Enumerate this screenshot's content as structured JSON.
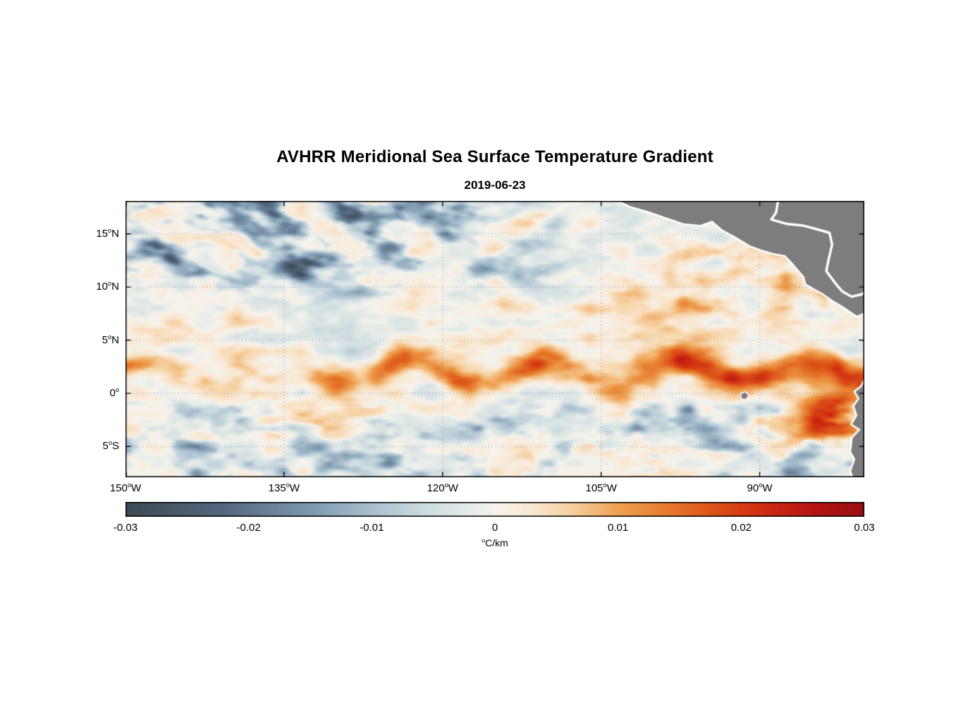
{
  "title": "AVHRR Meridional Sea Surface Temperature Gradient",
  "subtitle": "2019-06-23",
  "axes": {
    "deg_char": "o",
    "y_ticks": [
      {
        "lat": 15,
        "pre": "15",
        "post": "N"
      },
      {
        "lat": 10,
        "pre": "10",
        "post": "N"
      },
      {
        "lat": 5,
        "pre": "5",
        "post": "N"
      },
      {
        "lat": 0,
        "pre": "0",
        "post": ""
      },
      {
        "lat": -5,
        "pre": "5",
        "post": "S"
      }
    ],
    "x_ticks": [
      {
        "lon": -150,
        "pre": "150",
        "post": "W"
      },
      {
        "lon": -135,
        "pre": "135",
        "post": "W"
      },
      {
        "lon": -120,
        "pre": "120",
        "post": "W"
      },
      {
        "lon": -105,
        "pre": "105",
        "post": "W"
      },
      {
        "lon": -90,
        "pre": "90",
        "post": "W"
      }
    ]
  },
  "colorbar": {
    "tick_labels": [
      "-0.03",
      "-0.02",
      "-0.01",
      "0",
      "0.01",
      "0.02",
      "0.03"
    ],
    "units_deg": "o",
    "units_post": "C/km"
  },
  "chart_data": {
    "type": "heatmap",
    "title": "AVHRR Meridional Sea Surface Temperature Gradient",
    "subtitle_date": "2019-06-23",
    "units": "°C/km",
    "lon_range": [
      -150,
      -80.1
    ],
    "lat_range": [
      -7.9,
      18.1
    ],
    "value_range": [
      -0.03,
      0.03
    ],
    "x_tick_values_deg": [
      -150,
      -135,
      -120,
      -105,
      -90
    ],
    "y_tick_values_deg": [
      15,
      10,
      5,
      0,
      -5
    ],
    "grid": {
      "on": true,
      "color": "#3f618c",
      "style": "dotted"
    },
    "features_described": [
      "strong positive (red/orange) meridional SST gradient front meandering along 1-4N across the basin, strongest east of 125W (tropical instability wave front)",
      "secondary orange front patches near 8-9N east of 120W",
      "negative (dark blue) diagonal streaks between 10N and 18N west of about 110W",
      "scattered negative patches between 1S and 7S",
      "intense positive patch near the South American coast around 83W, 0-4S",
      "near-neutral pale background elsewhere",
      "gray land: Mexico / Central America in the northeast, Ecuador / Peru in the southeast, Galapagos islet near 91.5W 0.3S; white coastline halo"
    ],
    "colormap_stops": [
      {
        "v": -0.03,
        "c": "#3e4a54"
      },
      {
        "v": -0.022,
        "c": "#53687f"
      },
      {
        "v": -0.015,
        "c": "#7e98ae"
      },
      {
        "v": -0.01,
        "c": "#a8c0cf"
      },
      {
        "v": -0.005,
        "c": "#d2dfe2"
      },
      {
        "v": -0.001,
        "c": "#eef0eb"
      },
      {
        "v": 0.0,
        "c": "#f6f3ec"
      },
      {
        "v": 0.003,
        "c": "#f9e8d2"
      },
      {
        "v": 0.006,
        "c": "#f6d2a3"
      },
      {
        "v": 0.01,
        "c": "#efa254"
      },
      {
        "v": 0.014,
        "c": "#e67a2c"
      },
      {
        "v": 0.018,
        "c": "#db4f17"
      },
      {
        "v": 0.022,
        "c": "#ce2b12"
      },
      {
        "v": 0.026,
        "c": "#b41414"
      },
      {
        "v": 0.03,
        "c": "#9a0e12"
      }
    ],
    "synthesis": {
      "seed": 7,
      "bg1": {
        "fx": 0.33,
        "fy": 0.75,
        "amp": 0.015
      },
      "bg2": {
        "fx": 0.1,
        "fy": 0.3,
        "amp": 0.01
      },
      "front": {
        "base_lat": 2.0,
        "meander_amp": 1.15,
        "meander_k": 0.5,
        "meander_phase": 0.6,
        "wobble_amp": 2.2,
        "sigma": 1.35,
        "amp_min": 0.013,
        "amp_add": 0.019,
        "ramp": [
          -134,
          -117
        ]
      },
      "front2": {
        "lat": 8.6,
        "sigma": 1.15,
        "amp": 0.015,
        "ramp": [
          -124,
          -107
        ],
        "thresh": 0.38,
        "gain": 2.6
      },
      "nw": {
        "lat_ramp": [
          8.0,
          11.5
        ],
        "lon_ramp": [
          -124,
          -103
        ],
        "amp": 0.03,
        "thresh": 0.4,
        "gain": 2.0
      },
      "south": {
        "lat_ramp": [
          -1.5,
          -0.3
        ],
        "amp": 0.022,
        "thresh": 0.45,
        "gain": 2.0
      },
      "coastal_red": {
        "lon": -83.5,
        "lat": -2.0,
        "sx": 3.0,
        "sy": 2.2,
        "amp": 0.024
      },
      "ca_orange": {
        "lon_ramp": [
          -104,
          -96
        ],
        "lat": 11.5,
        "sigma": 2.5,
        "amp": 0.012,
        "thresh": 0.3,
        "gain": 1.5
      }
    },
    "land": {
      "fill": "#7d7d7d",
      "coast_stroke": "#ffffff",
      "central_america_coast": [
        [
          -103.9,
          18.4
        ],
        [
          -102.2,
          17.6
        ],
        [
          -100.6,
          17.15
        ],
        [
          -99.0,
          16.6
        ],
        [
          -97.2,
          16.0
        ],
        [
          -95.6,
          15.85
        ],
        [
          -94.5,
          16.25
        ],
        [
          -93.5,
          15.4
        ],
        [
          -92.3,
          14.75
        ],
        [
          -90.9,
          13.9
        ],
        [
          -89.8,
          13.5
        ],
        [
          -88.7,
          13.2
        ],
        [
          -87.6,
          13.0
        ],
        [
          -87.0,
          12.4
        ],
        [
          -86.4,
          11.7
        ],
        [
          -85.8,
          11.0
        ],
        [
          -85.6,
          10.3
        ],
        [
          -84.9,
          9.9
        ],
        [
          -84.0,
          9.4
        ],
        [
          -83.0,
          8.7
        ],
        [
          -82.2,
          8.25
        ],
        [
          -81.4,
          7.7
        ],
        [
          -80.8,
          7.3
        ],
        [
          -80.2,
          7.55
        ],
        [
          -79.6,
          8.1
        ]
      ],
      "central_america_close": [
        [
          -79.3,
          8.1
        ],
        [
          -79.3,
          18.4
        ]
      ],
      "caribbean_coast": [
        [
          -88.2,
          18.5
        ],
        [
          -88.45,
          17.0
        ],
        [
          -88.9,
          16.35
        ],
        [
          -87.5,
          15.95
        ],
        [
          -86.0,
          15.8
        ],
        [
          -84.8,
          15.5
        ],
        [
          -83.4,
          15.1
        ],
        [
          -83.15,
          14.0
        ],
        [
          -83.5,
          12.5
        ],
        [
          -83.7,
          11.5
        ],
        [
          -82.8,
          10.3
        ],
        [
          -82.2,
          9.6
        ],
        [
          -81.3,
          9.1
        ],
        [
          -80.4,
          9.3
        ],
        [
          -79.7,
          9.6
        ]
      ],
      "south_america_coast": [
        [
          -79.9,
          1.5
        ],
        [
          -80.35,
          0.6
        ],
        [
          -80.95,
          0.15
        ],
        [
          -80.55,
          -0.5
        ],
        [
          -81.05,
          -1.2
        ],
        [
          -80.75,
          -2.1
        ],
        [
          -81.25,
          -2.9
        ],
        [
          -80.45,
          -3.4
        ],
        [
          -81.2,
          -4.2
        ],
        [
          -81.35,
          -5.5
        ],
        [
          -80.95,
          -6.2
        ],
        [
          -81.35,
          -7.3
        ],
        [
          -81.0,
          -8.3
        ]
      ],
      "south_america_close": [
        [
          -79.3,
          -8.3
        ],
        [
          -79.3,
          1.5
        ]
      ],
      "galapagos": [
        [
          -91.75,
          -0.05
        ],
        [
          -91.35,
          0.1
        ],
        [
          -91.1,
          -0.2
        ],
        [
          -91.35,
          -0.55
        ],
        [
          -91.7,
          -0.45
        ]
      ]
    }
  }
}
